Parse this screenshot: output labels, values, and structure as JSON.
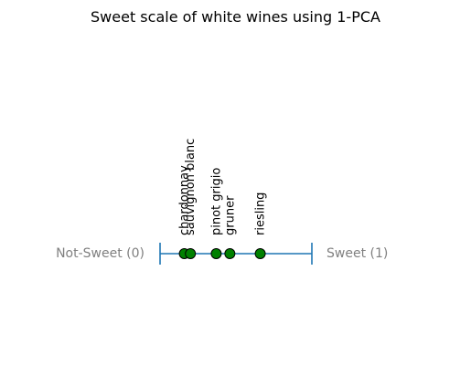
{
  "chart_data": {
    "type": "scatter",
    "title": "Sweet scale of white wines using 1-PCA",
    "xlim": [
      0,
      1
    ],
    "scale_labels": {
      "left": "Not-Sweet (0)",
      "right": "Sweet (1)"
    },
    "points": [
      {
        "label": "chardonnay",
        "x": 0.16
      },
      {
        "label": "sauvignon blanc",
        "x": 0.2
      },
      {
        "label": "pinot grigio",
        "x": 0.37
      },
      {
        "label": "gruner",
        "x": 0.46
      },
      {
        "label": "riesling",
        "x": 0.66
      }
    ],
    "colors": {
      "axis_line": "#1f77b4",
      "marker_fill": "#008000",
      "marker_edge": "#000000",
      "scale_label": "#808080",
      "text": "#000000"
    }
  }
}
